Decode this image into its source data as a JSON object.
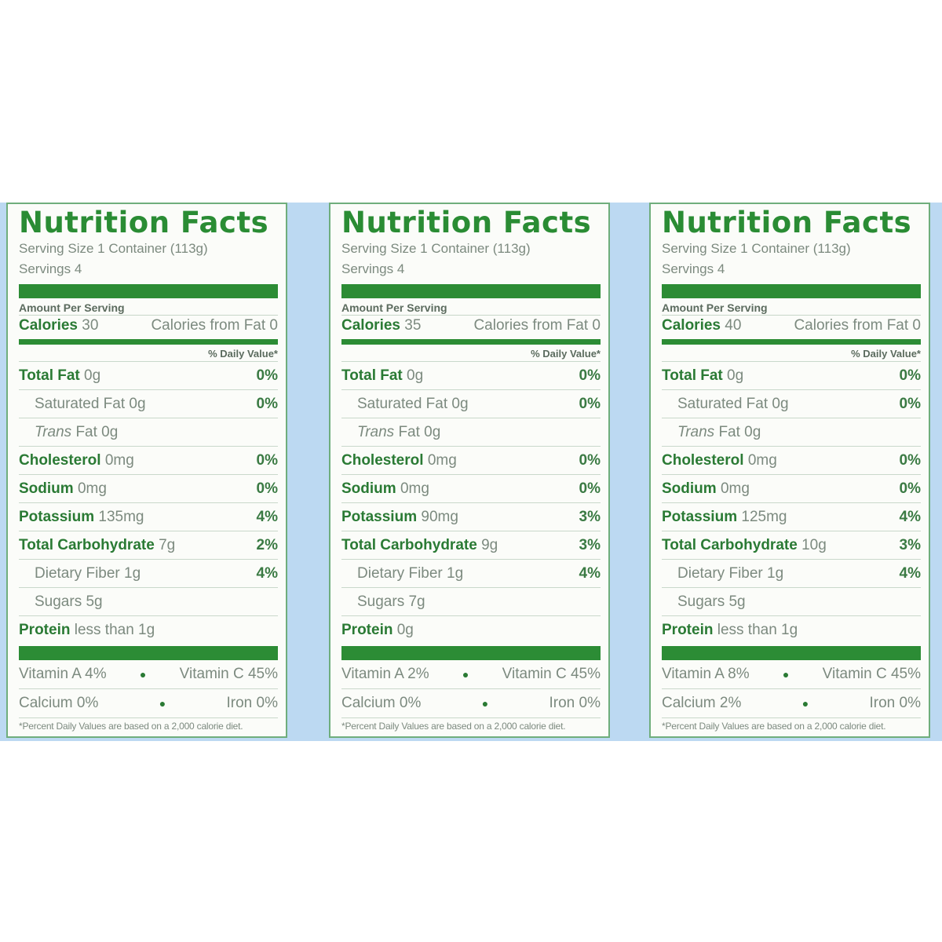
{
  "labels": [
    {
      "title": "Nutrition Facts",
      "serving_size": "Serving Size 1 Container (113g)",
      "servings": "Servings 4",
      "amount_per_serving": "Amount Per Serving",
      "calories_label": "Calories",
      "calories": "30",
      "calories_from_fat": "Calories from Fat 0",
      "dv_header": "% Daily Value*",
      "rows": [
        {
          "label": "Total Fat",
          "value": "0g",
          "pct": "0%"
        },
        {
          "label": "Saturated Fat",
          "value": "0g",
          "pct": "0%"
        },
        {
          "label": "Trans",
          "value": "Fat 0g",
          "pct": ""
        },
        {
          "label": "Cholesterol",
          "value": "0mg",
          "pct": "0%"
        },
        {
          "label": "Sodium",
          "value": "0mg",
          "pct": "0%"
        },
        {
          "label": "Potassium",
          "value": "135mg",
          "pct": "4%"
        },
        {
          "label": "Total Carbohydrate",
          "value": "7g",
          "pct": "2%"
        },
        {
          "label": "Dietary Fiber",
          "value": "1g",
          "pct": "4%"
        },
        {
          "label": "Sugars",
          "value": "5g",
          "pct": ""
        },
        {
          "label": "Protein",
          "value": "less than 1g",
          "pct": ""
        }
      ],
      "vitamin_a": "Vitamin A 4%",
      "vitamin_c": "Vitamin C 45%",
      "calcium": "Calcium 0%",
      "iron": "Iron 0%",
      "footnote": "*Percent Daily Values are based on a 2,000 calorie diet."
    },
    {
      "title": "Nutrition Facts",
      "serving_size": "Serving Size 1 Container (113g)",
      "servings": "Servings 4",
      "amount_per_serving": "Amount Per Serving",
      "calories_label": "Calories",
      "calories": "35",
      "calories_from_fat": "Calories from Fat 0",
      "dv_header": "% Daily Value*",
      "rows": [
        {
          "label": "Total Fat",
          "value": "0g",
          "pct": "0%"
        },
        {
          "label": "Saturated Fat",
          "value": "0g",
          "pct": "0%"
        },
        {
          "label": "Trans",
          "value": "Fat 0g",
          "pct": ""
        },
        {
          "label": "Cholesterol",
          "value": "0mg",
          "pct": "0%"
        },
        {
          "label": "Sodium",
          "value": "0mg",
          "pct": "0%"
        },
        {
          "label": "Potassium",
          "value": "90mg",
          "pct": "3%"
        },
        {
          "label": "Total Carbohydrate",
          "value": "9g",
          "pct": "3%"
        },
        {
          "label": "Dietary Fiber",
          "value": "1g",
          "pct": "4%"
        },
        {
          "label": "Sugars",
          "value": "7g",
          "pct": ""
        },
        {
          "label": "Protein",
          "value": "0g",
          "pct": ""
        }
      ],
      "vitamin_a": "Vitamin A 2%",
      "vitamin_c": "Vitamin C 45%",
      "calcium": "Calcium 0%",
      "iron": "Iron 0%",
      "footnote": "*Percent Daily Values are based on a 2,000 calorie diet."
    },
    {
      "title": "Nutrition Facts",
      "serving_size": "Serving Size 1 Container (113g)",
      "servings": "Servings 4",
      "amount_per_serving": "Amount Per Serving",
      "calories_label": "Calories",
      "calories": "40",
      "calories_from_fat": "Calories from Fat 0",
      "dv_header": "% Daily Value*",
      "rows": [
        {
          "label": "Total Fat",
          "value": "0g",
          "pct": "0%"
        },
        {
          "label": "Saturated Fat",
          "value": "0g",
          "pct": "0%"
        },
        {
          "label": "Trans",
          "value": "Fat 0g",
          "pct": ""
        },
        {
          "label": "Cholesterol",
          "value": "0mg",
          "pct": "0%"
        },
        {
          "label": "Sodium",
          "value": "0mg",
          "pct": "0%"
        },
        {
          "label": "Potassium",
          "value": "125mg",
          "pct": "4%"
        },
        {
          "label": "Total Carbohydrate",
          "value": "10g",
          "pct": "3%"
        },
        {
          "label": "Dietary Fiber",
          "value": "1g",
          "pct": "4%"
        },
        {
          "label": "Sugars",
          "value": "5g",
          "pct": ""
        },
        {
          "label": "Protein",
          "value": "less than 1g",
          "pct": ""
        }
      ],
      "vitamin_a": "Vitamin A 8%",
      "vitamin_c": "Vitamin C 45%",
      "calcium": "Calcium 2%",
      "iron": "Iron 0%",
      "footnote": "*Percent Daily Values are based on a 2,000 calorie diet."
    }
  ]
}
